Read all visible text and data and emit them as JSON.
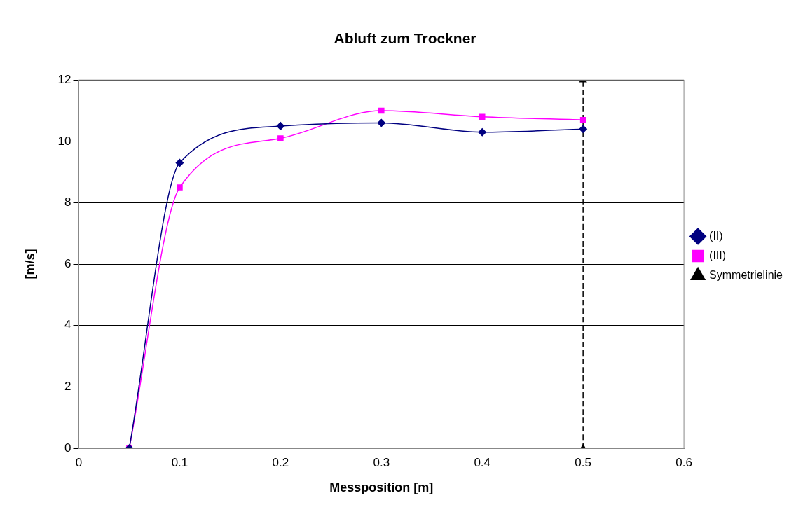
{
  "chart_data": {
    "type": "line",
    "title": "Abluft zum Trockner",
    "xlabel": "Messposition [m]",
    "ylabel": "[m/s]",
    "xlim": [
      0,
      0.6
    ],
    "xticks": [
      0,
      0.1,
      0.2,
      0.3,
      0.4,
      0.5,
      0.6
    ],
    "ylim": [
      0,
      12
    ],
    "yticks": [
      0,
      2,
      4,
      6,
      8,
      10,
      12
    ],
    "grid": "y",
    "legend": "right",
    "series": [
      {
        "name": "(II)",
        "color": "#000080",
        "marker": "diamond",
        "line_style": "solid",
        "x": [
          0.05,
          0.1,
          0.2,
          0.3,
          0.4,
          0.5
        ],
        "values": [
          0,
          9.3,
          10.5,
          10.6,
          10.3,
          10.4
        ]
      },
      {
        "name": "(III)",
        "color": "#ff00ff",
        "marker": "square",
        "line_style": "solid",
        "x": [
          0.05,
          0.1,
          0.2,
          0.3,
          0.4,
          0.5
        ],
        "values": [
          0,
          8.5,
          10.1,
          11.0,
          10.8,
          10.7
        ]
      },
      {
        "name": "Symmetrielinie",
        "color": "#000000",
        "marker": "triangle",
        "line_style": "dashed",
        "x": [
          0.5,
          0.5
        ],
        "values": [
          0,
          12
        ]
      }
    ]
  }
}
